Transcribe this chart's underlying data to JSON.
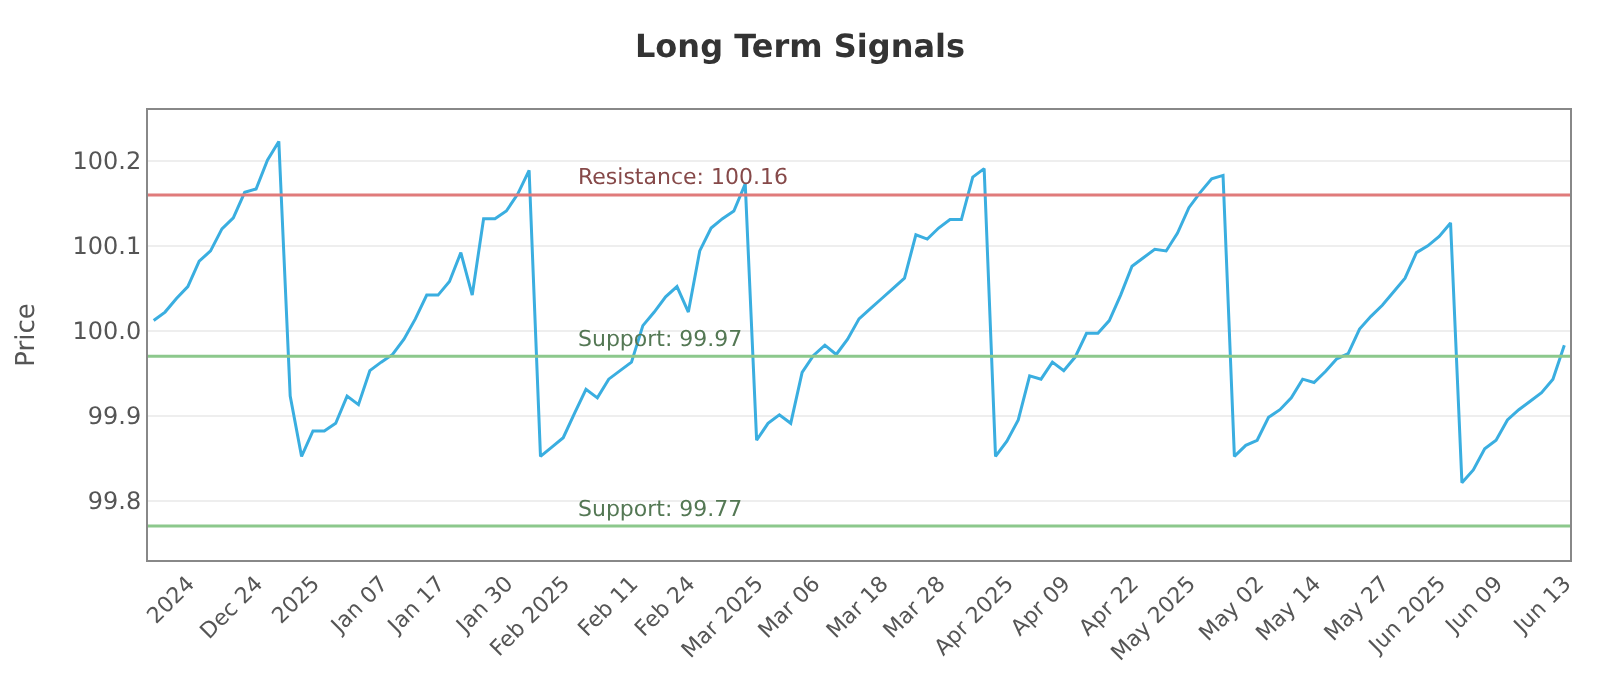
{
  "chart_data": {
    "type": "line",
    "title": "Long Term Signals",
    "ylabel": "Price",
    "categories": [
      null,
      null,
      null,
      "2024",
      null,
      null,
      null,
      null,
      null,
      "Dec 24",
      null,
      null,
      null,
      null,
      "2025",
      null,
      null,
      null,
      null,
      null,
      "Jan 07",
      null,
      null,
      null,
      null,
      "Jan 17",
      null,
      null,
      null,
      null,
      null,
      "Jan 30",
      null,
      null,
      null,
      null,
      "Feb 2025",
      null,
      null,
      null,
      null,
      null,
      "Feb 11",
      null,
      null,
      null,
      null,
      "Feb 24",
      null,
      null,
      null,
      null,
      null,
      "Mar 2025",
      null,
      null,
      null,
      null,
      "Mar 06",
      null,
      null,
      null,
      null,
      null,
      "Mar 18",
      null,
      null,
      null,
      null,
      "Mar 28",
      null,
      null,
      null,
      null,
      null,
      "Apr 2025",
      null,
      null,
      null,
      null,
      "Apr 09",
      null,
      null,
      null,
      null,
      null,
      "Apr 22",
      null,
      null,
      null,
      null,
      "May 2025",
      null,
      null,
      null,
      null,
      null,
      "May 02",
      null,
      null,
      null,
      null,
      "May 14",
      null,
      null,
      null,
      null,
      null,
      "May 27",
      null,
      null,
      null,
      null,
      "Jun 2025",
      null,
      null,
      null,
      null,
      "Jun 09",
      null,
      null,
      null,
      null,
      null,
      "Jun 13"
    ],
    "series": [
      {
        "color": "#3aaee0",
        "values": [
          100.012,
          100.022,
          100.038,
          100.052,
          100.082,
          100.094,
          100.12,
          100.133,
          100.163,
          100.167,
          100.201,
          100.223,
          99.923,
          99.852,
          99.882,
          99.882,
          99.891,
          99.923,
          99.913,
          99.953,
          99.963,
          99.972,
          99.99,
          100.014,
          100.042,
          100.042,
          100.058,
          100.092,
          100.042,
          100.132,
          100.132,
          100.141,
          100.161,
          100.189,
          99.852,
          99.863,
          99.874,
          99.903,
          99.931,
          99.921,
          99.943,
          99.953,
          99.963,
          100.006,
          100.022,
          100.04,
          100.052,
          100.022,
          100.094,
          100.121,
          100.132,
          100.141,
          100.173,
          99.871,
          99.891,
          99.901,
          99.891,
          99.951,
          99.971,
          99.983,
          99.972,
          99.99,
          100.014,
          100.026,
          100.038,
          100.05,
          100.062,
          100.113,
          100.108,
          100.121,
          100.131,
          100.131,
          100.181,
          100.191,
          99.852,
          99.87,
          99.895,
          99.947,
          99.943,
          99.963,
          99.953,
          99.969,
          99.997,
          99.997,
          100.012,
          100.042,
          100.076,
          100.086,
          100.096,
          100.094,
          100.115,
          100.145,
          100.163,
          100.179,
          100.183,
          99.852,
          99.865,
          99.871,
          99.898,
          99.907,
          99.921,
          99.943,
          99.939,
          99.952,
          99.967,
          99.973,
          100.002,
          100.017,
          100.03,
          100.046,
          100.062,
          100.092,
          100.1,
          100.111,
          100.127,
          99.821,
          99.836,
          99.861,
          99.871,
          99.895,
          99.907,
          99.917,
          99.927,
          99.943,
          99.983
        ]
      }
    ],
    "ylim": [
      99.73,
      100.26
    ],
    "yticks": [
      99.8,
      99.9,
      {
        "value": 100,
        "label": "100.0"
      },
      100.1,
      100.2
    ],
    "grid": "y",
    "marker": "none",
    "line_style": "solid",
    "ref_lines": [
      {
        "axis": "y",
        "value": 100.16,
        "label": "Resistance: 100.16",
        "color": "#e07b7b"
      },
      {
        "axis": "y",
        "value": 99.97,
        "label": "Support: 99.97",
        "color": "#8cc88c"
      },
      {
        "axis": "y",
        "value": 99.77,
        "label": "Support: 99.77",
        "color": "#8cc88c"
      }
    ]
  }
}
